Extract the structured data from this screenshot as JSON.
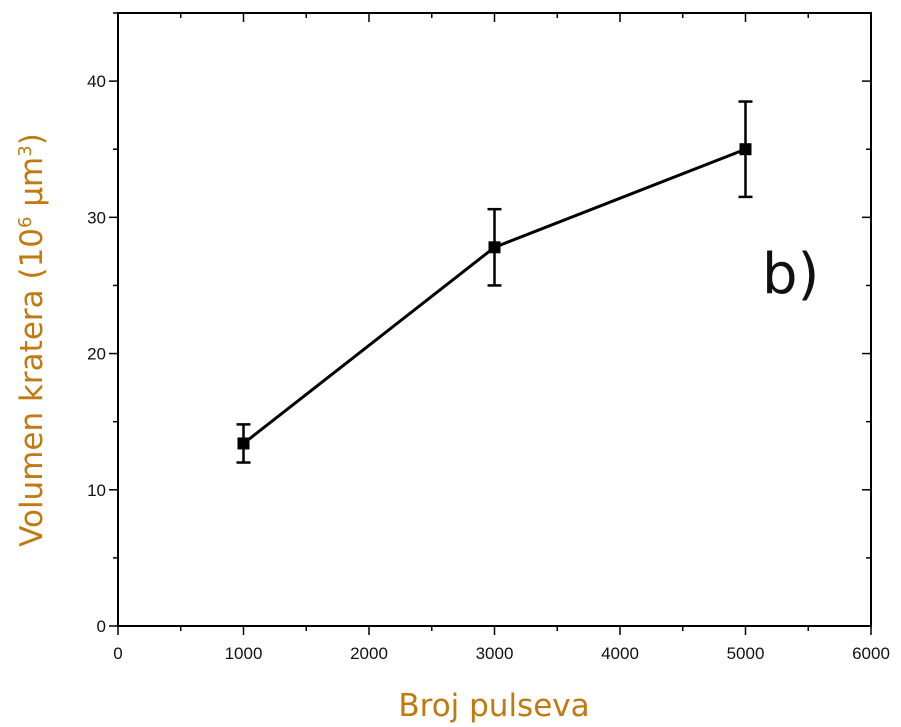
{
  "chart_data": {
    "type": "line",
    "title": "",
    "panel_label": "b)",
    "xlabel": "Broj pulseva",
    "ylabel": {
      "main": "Volumen kratera (10",
      "exp1": "6",
      "unit": " μm",
      "exp2": "3",
      "close": ")"
    },
    "xlim": [
      0,
      6000
    ],
    "ylim": [
      0,
      45
    ],
    "x_ticks": [
      0,
      1000,
      2000,
      3000,
      4000,
      5000,
      6000
    ],
    "y_ticks": [
      0,
      10,
      20,
      30,
      40
    ],
    "series": [
      {
        "x": [
          1000,
          3000,
          5000
        ],
        "y": [
          13.4,
          27.8,
          35.0
        ],
        "error": [
          1.4,
          2.8,
          3.5
        ],
        "marker": "square"
      }
    ],
    "grid": false,
    "colors": {
      "line": "#000000",
      "axis_label": "#c07a10",
      "axes": "#000000"
    }
  }
}
